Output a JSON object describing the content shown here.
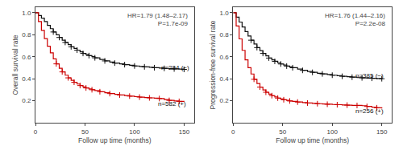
{
  "chart_data": [
    {
      "type": "step",
      "x_label": "Follow up time (months)",
      "y_label": "Overall survival rate",
      "xlim": [
        0,
        160
      ],
      "ylim": [
        0,
        1.05
      ],
      "xticks": [
        0,
        50,
        100,
        150
      ],
      "yticks": [
        0.2,
        0.4,
        0.6,
        0.8,
        {
          "value": 1.0,
          "label": "1.0"
        }
      ],
      "grid": false,
      "series": [
        {
          "type": "step",
          "color": "#111111",
          "x": [
            0,
            3,
            6,
            9,
            12,
            15,
            18,
            21,
            24,
            27,
            30,
            33,
            36,
            39,
            42,
            45,
            48,
            51,
            54,
            57,
            60,
            65,
            70,
            75,
            80,
            85,
            90,
            95,
            100,
            105,
            110,
            115,
            120,
            125,
            130,
            135,
            140,
            145,
            150
          ],
          "values": [
            1.0,
            0.975,
            0.95,
            0.92,
            0.885,
            0.855,
            0.825,
            0.8,
            0.775,
            0.75,
            0.73,
            0.71,
            0.69,
            0.675,
            0.66,
            0.645,
            0.63,
            0.62,
            0.61,
            0.6,
            0.59,
            0.575,
            0.562,
            0.552,
            0.542,
            0.535,
            0.528,
            0.522,
            0.516,
            0.512,
            0.508,
            0.504,
            0.5,
            0.497,
            0.494,
            0.491,
            0.489,
            0.487,
            0.485
          ]
        },
        {
          "type": "step",
          "color": "#cc0000",
          "x": [
            0,
            3,
            6,
            9,
            12,
            15,
            18,
            21,
            24,
            27,
            30,
            33,
            36,
            39,
            42,
            45,
            48,
            51,
            54,
            57,
            60,
            65,
            70,
            75,
            80,
            85,
            90,
            95,
            100,
            105,
            110,
            115,
            120,
            125,
            130,
            135,
            140,
            145,
            150
          ],
          "values": [
            1.0,
            0.92,
            0.84,
            0.765,
            0.695,
            0.635,
            0.58,
            0.535,
            0.495,
            0.462,
            0.432,
            0.408,
            0.386,
            0.368,
            0.352,
            0.338,
            0.326,
            0.316,
            0.307,
            0.3,
            0.293,
            0.282,
            0.273,
            0.265,
            0.258,
            0.252,
            0.247,
            0.242,
            0.237,
            0.233,
            0.229,
            0.226,
            0.223,
            0.22,
            0.21,
            0.203,
            0.198,
            0.194,
            0.191
          ]
        },
        {
          "type": "scatter",
          "marker": "plus",
          "color": "#111111",
          "x": [
            18,
            24,
            30,
            36,
            42,
            48,
            54,
            60,
            70,
            80,
            90,
            100,
            110,
            120,
            130,
            140,
            150
          ],
          "values": [
            0.825,
            0.775,
            0.73,
            0.69,
            0.66,
            0.63,
            0.61,
            0.59,
            0.562,
            0.542,
            0.528,
            0.516,
            0.508,
            0.5,
            0.494,
            0.489,
            0.485
          ]
        },
        {
          "type": "scatter",
          "marker": "plus",
          "color": "#cc0000",
          "x": [
            21,
            27,
            33,
            39,
            45,
            51,
            57,
            65,
            75,
            85,
            95,
            105,
            115,
            125,
            135,
            145
          ],
          "values": [
            0.535,
            0.462,
            0.408,
            0.368,
            0.338,
            0.316,
            0.3,
            0.282,
            0.265,
            0.252,
            0.242,
            0.233,
            0.226,
            0.22,
            0.203,
            0.194
          ]
        }
      ],
      "annotations": [
        {
          "text": "HR=1.79 (1.48–2.17)"
        },
        {
          "text": "P=1.7e-09"
        },
        {
          "text": "n=294 (−)",
          "x": 125,
          "y": 0.5,
          "color": "#111111"
        },
        {
          "text": "n=582 (+)",
          "x": 122,
          "y": 0.17,
          "color": "#111111"
        }
      ]
    },
    {
      "type": "step",
      "x_label": "Follow up time (months)",
      "y_label": "Progression-free survival rate",
      "xlim": [
        0,
        160
      ],
      "ylim": [
        0,
        1.05
      ],
      "xticks": [
        0,
        50,
        100,
        150
      ],
      "yticks": [
        0.2,
        0.4,
        0.6,
        0.8,
        {
          "value": 1.0,
          "label": "1.0"
        }
      ],
      "grid": false,
      "series": [
        {
          "type": "step",
          "color": "#111111",
          "x": [
            0,
            3,
            6,
            9,
            12,
            15,
            18,
            21,
            24,
            27,
            30,
            33,
            36,
            39,
            42,
            45,
            48,
            51,
            54,
            57,
            60,
            65,
            70,
            75,
            80,
            85,
            90,
            95,
            100,
            105,
            110,
            115,
            120,
            125,
            130,
            135,
            140,
            145,
            150
          ],
          "values": [
            1.0,
            0.96,
            0.915,
            0.87,
            0.828,
            0.788,
            0.75,
            0.715,
            0.683,
            0.655,
            0.63,
            0.608,
            0.588,
            0.572,
            0.558,
            0.545,
            0.534,
            0.524,
            0.515,
            0.507,
            0.5,
            0.487,
            0.476,
            0.466,
            0.458,
            0.45,
            0.444,
            0.438,
            0.432,
            0.427,
            0.422,
            0.418,
            0.414,
            0.41,
            0.408,
            0.406,
            0.404,
            0.402,
            0.4
          ]
        },
        {
          "type": "step",
          "color": "#cc0000",
          "x": [
            0,
            3,
            6,
            9,
            12,
            15,
            18,
            21,
            24,
            27,
            30,
            33,
            36,
            39,
            42,
            45,
            48,
            51,
            54,
            57,
            60,
            65,
            70,
            75,
            80,
            85,
            90,
            95,
            100,
            105,
            110,
            115,
            120,
            125,
            130,
            135,
            140,
            145,
            150
          ],
          "values": [
            1.0,
            0.88,
            0.762,
            0.658,
            0.572,
            0.5,
            0.443,
            0.395,
            0.356,
            0.324,
            0.298,
            0.277,
            0.26,
            0.246,
            0.234,
            0.224,
            0.216,
            0.209,
            0.203,
            0.198,
            0.194,
            0.188,
            0.183,
            0.179,
            0.176,
            0.173,
            0.17,
            0.168,
            0.166,
            0.164,
            0.162,
            0.16,
            0.158,
            0.157,
            0.155,
            0.148,
            0.142,
            0.136,
            0.13
          ]
        },
        {
          "type": "scatter",
          "marker": "plus",
          "color": "#111111",
          "x": [
            18,
            24,
            30,
            36,
            42,
            48,
            54,
            60,
            70,
            80,
            90,
            100,
            110,
            120,
            130,
            140,
            150
          ],
          "values": [
            0.75,
            0.683,
            0.63,
            0.588,
            0.558,
            0.534,
            0.515,
            0.5,
            0.476,
            0.458,
            0.444,
            0.432,
            0.422,
            0.414,
            0.408,
            0.404,
            0.4
          ]
        },
        {
          "type": "scatter",
          "marker": "plus",
          "color": "#cc0000",
          "x": [
            21,
            27,
            33,
            39,
            45,
            51,
            57,
            65,
            75,
            85,
            95,
            105,
            115,
            125,
            135,
            145
          ],
          "values": [
            0.395,
            0.324,
            0.277,
            0.246,
            0.224,
            0.209,
            0.198,
            0.188,
            0.179,
            0.173,
            0.168,
            0.164,
            0.16,
            0.157,
            0.148,
            0.136
          ]
        }
      ],
      "annotations": [
        {
          "text": "HR=1.76 (1.44–2.16)"
        },
        {
          "text": "P=2.2e-08"
        },
        {
          "text": "n=385 (−)",
          "x": 122,
          "y": 0.425,
          "color": "#111111"
        },
        {
          "text": "n=256 (+)",
          "x": 122,
          "y": 0.108,
          "color": "#111111"
        }
      ]
    }
  ]
}
